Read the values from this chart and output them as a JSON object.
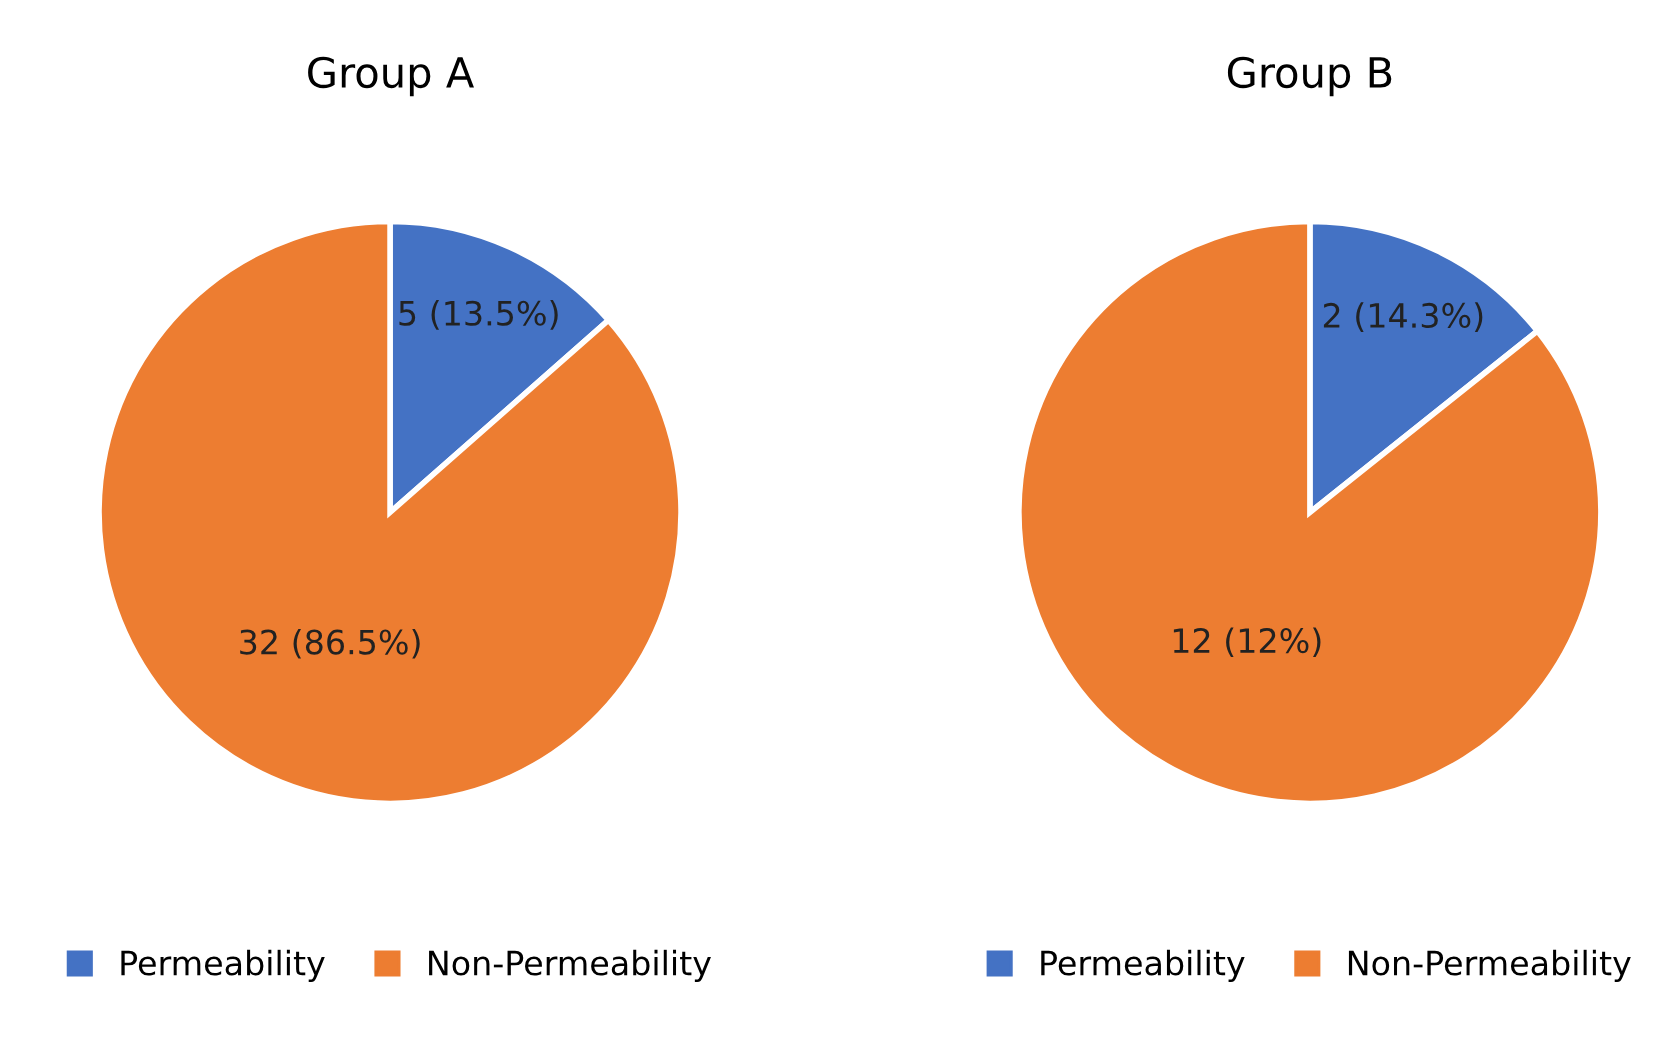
{
  "chart_data": [
    {
      "type": "pie",
      "title": "Group A",
      "categories": [
        "Permeability",
        "Non-Permeability"
      ],
      "values": [
        5,
        32
      ],
      "colors": [
        "#4472c4",
        "#ed7d31"
      ],
      "value_labels": [
        "5 (13.5%)",
        "32 (86.5%)"
      ],
      "legend": "bottom"
    },
    {
      "type": "pie",
      "title": "Group B",
      "categories": [
        "Permeability",
        "Non-Permeability"
      ],
      "values": [
        2,
        12
      ],
      "colors": [
        "#4472c4",
        "#ed7d31"
      ],
      "value_labels": [
        "2 (14.3%)",
        "12 (12%)"
      ],
      "legend": "bottom"
    }
  ]
}
